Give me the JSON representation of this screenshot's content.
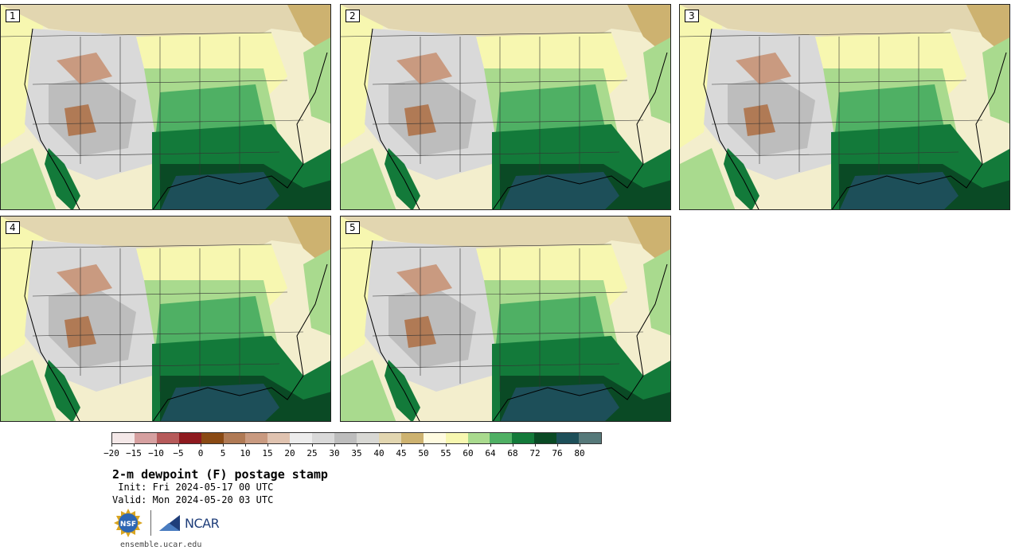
{
  "panels": [
    {
      "label": "1"
    },
    {
      "label": "2"
    },
    {
      "label": "3"
    },
    {
      "label": "4"
    },
    {
      "label": "5"
    }
  ],
  "colorbar": {
    "colors": [
      "#f4e8e8",
      "#d6a0a0",
      "#b65a5a",
      "#8e1a1f",
      "#8a4a14",
      "#b07a55",
      "#c99a80",
      "#e0c3b0",
      "#ececec",
      "#d9d9d9",
      "#bdbdbd",
      "#d8d8d4",
      "#e2d6b0",
      "#cdb270",
      "#fffbe0",
      "#f7f7b0",
      "#a9da8e",
      "#4fb064",
      "#137a3a",
      "#0a4a25",
      "#1d4f59",
      "#56797a"
    ],
    "tick_labels": [
      "−20",
      "−15",
      "−10",
      "−5",
      "0",
      "5",
      "10",
      "15",
      "20",
      "25",
      "30",
      "35",
      "40",
      "45",
      "50",
      "55",
      "60",
      "64",
      "68",
      "72",
      "76",
      "80"
    ]
  },
  "title": "2-m dewpoint (F) postage stamp",
  "init": " Init: Fri 2024-05-17 00 UTC",
  "valid": "Valid: Mon 2024-05-20 03 UTC",
  "logos": {
    "nsf": "NSF",
    "ncar": "NCAR"
  },
  "site": "ensemble.ucar.edu"
}
